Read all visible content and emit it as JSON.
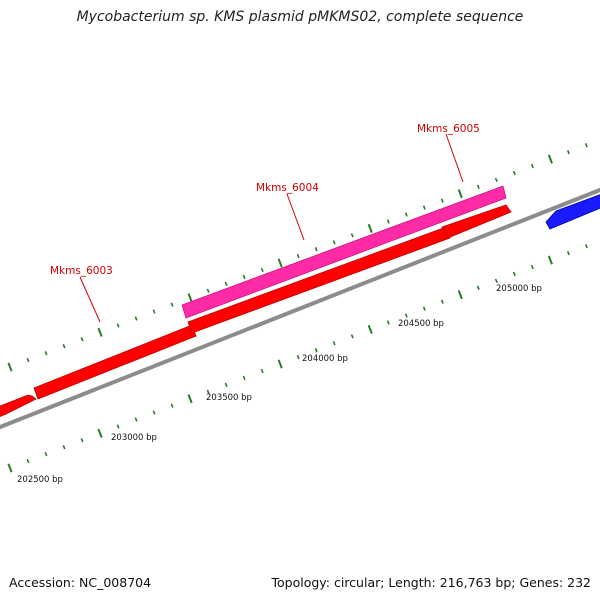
{
  "title": "Mycobacterium sp. KMS plasmid pMKMS02, complete sequence",
  "footer": {
    "accession": "Accession: NC_008704",
    "summary": "Topology: circular; Length: 216,763 bp; Genes: 232"
  },
  "colors": {
    "backbone": "#8c8c8c",
    "forward_gene": "#ff0000",
    "forward_gene_dark": "#c00000",
    "pink_gene": "#ff2aa5",
    "pink_gene_dark": "#c8157c",
    "reverse_gene": "#1a1aff",
    "tick": "#2a7a2a",
    "label": "#d40000"
  },
  "genes": {
    "mkms6003": {
      "label": "Mkms_6003"
    },
    "mkms6004": {
      "label": "Mkms_6004"
    },
    "mkms6005": {
      "label": "Mkms_6005"
    }
  },
  "ticks": {
    "t202500": "202500 bp",
    "t203000": "203000 bp",
    "t203500": "203500 bp",
    "t204000": "204000 bp",
    "t204500": "204500 bp",
    "t205000": "205000 bp"
  }
}
